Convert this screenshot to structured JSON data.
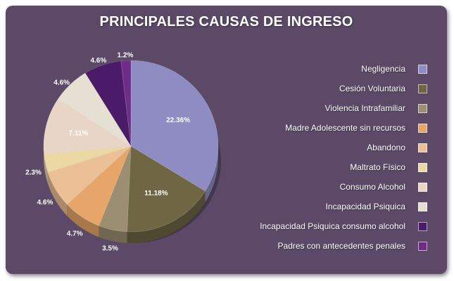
{
  "chart_data": {
    "type": "pie",
    "title": "PRINCIPALES CAUSAS DE INGRESO",
    "legend_position": "right",
    "slices": [
      {
        "label": "Negligencia",
        "value": 22.36,
        "display": "22.36%",
        "color": "#8e8cc3"
      },
      {
        "label": "Cesión Voluntaria",
        "value": 11.18,
        "display": "11.18%",
        "color": "#6f6644"
      },
      {
        "label": "Violencia Intrafamiliar",
        "value": 3.5,
        "display": "3.5%",
        "color": "#9c8e70"
      },
      {
        "label": "Madre Adolescente sin recursos",
        "value": 4.7,
        "display": "4.7%",
        "color": "#e6a66a"
      },
      {
        "label": "Abandono",
        "value": 4.6,
        "display": "4.6%",
        "color": "#ecc095"
      },
      {
        "label": "Maltrato Físico",
        "value": 2.3,
        "display": "2.3%",
        "color": "#ebd8a3"
      },
      {
        "label": "Consumo Alcohol",
        "value": 7.11,
        "display": "7.11%",
        "color": "#e9d5c6"
      },
      {
        "label": "Incapacidad Psiquica",
        "value": 4.6,
        "display": "4.6%",
        "color": "#e6e0d3"
      },
      {
        "label": "Incapacidad Psiquica consumo alcohol",
        "value": 4.6,
        "display": "4.6%",
        "color": "#4b1b6a"
      },
      {
        "label": "Padres con antecedentes penales",
        "value": 1.2,
        "display": "1.2%",
        "color": "#6e2d86"
      }
    ]
  }
}
